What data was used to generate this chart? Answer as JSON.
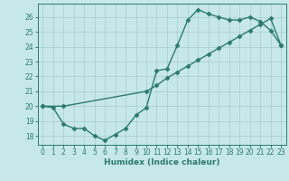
{
  "xlabel": "Humidex (Indice chaleur)",
  "bg_color": "#c6e8e8",
  "line_color": "#2d7a6e",
  "grid_color": "#a8cccc",
  "xlim": [
    -0.5,
    23.5
  ],
  "ylim": [
    17.4,
    26.9
  ],
  "xticks": [
    0,
    1,
    2,
    3,
    4,
    5,
    6,
    7,
    8,
    9,
    10,
    11,
    12,
    13,
    14,
    15,
    16,
    17,
    18,
    19,
    20,
    21,
    22,
    23
  ],
  "yticks": [
    18,
    19,
    20,
    21,
    22,
    23,
    24,
    25,
    26
  ],
  "line1_x": [
    0,
    1,
    2,
    3,
    4,
    5,
    6,
    7,
    8,
    9,
    10,
    11,
    12,
    13,
    14,
    15,
    16,
    17,
    18,
    19,
    20,
    21,
    22,
    23
  ],
  "line1_y": [
    20.0,
    19.9,
    18.8,
    18.5,
    18.5,
    18.0,
    17.7,
    18.1,
    18.5,
    19.4,
    19.9,
    22.4,
    22.5,
    24.1,
    25.8,
    26.5,
    26.2,
    26.0,
    25.8,
    25.8,
    26.0,
    25.7,
    25.1,
    24.1
  ],
  "line2_x": [
    0,
    2,
    10,
    11,
    12,
    13,
    14,
    15,
    16,
    17,
    18,
    19,
    20,
    21,
    22,
    23
  ],
  "line2_y": [
    20.0,
    20.0,
    21.0,
    21.4,
    21.9,
    22.3,
    22.7,
    23.1,
    23.5,
    23.9,
    24.3,
    24.7,
    25.1,
    25.5,
    25.9,
    24.1
  ],
  "marker": "D",
  "markersize": 2.5,
  "linewidth": 1.0,
  "tick_fontsize": 5.5,
  "xlabel_fontsize": 6.5
}
